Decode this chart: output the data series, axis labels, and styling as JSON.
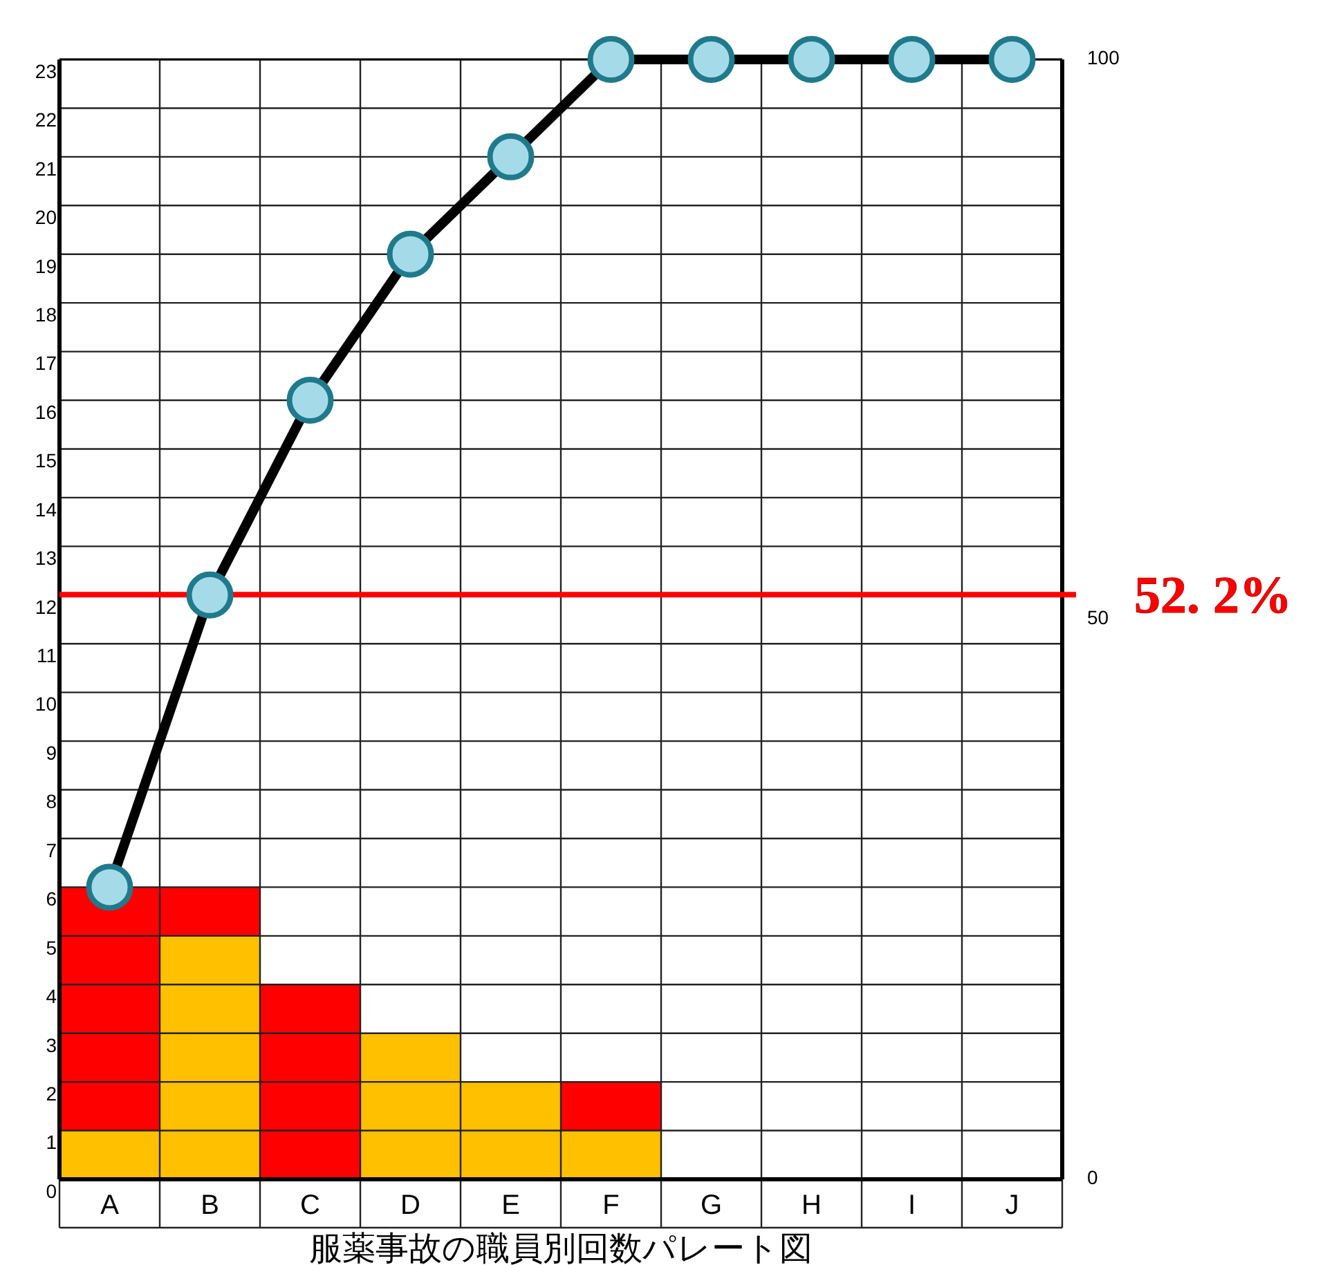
{
  "chart_data": {
    "type": "bar",
    "xlabel": "服薬事故の職員別回数パレート図",
    "categories": [
      "A",
      "B",
      "C",
      "D",
      "E",
      "F",
      "G",
      "H",
      "I",
      "J"
    ],
    "stacked": true,
    "series": [
      {
        "color": "#ffc000",
        "values": [
          1,
          5,
          0,
          3,
          2,
          1,
          0,
          0,
          0,
          0
        ]
      },
      {
        "color": "#ff0000",
        "values": [
          5,
          1,
          4,
          0,
          0,
          1,
          0,
          0,
          0,
          0
        ]
      },
      {
        "type": "line",
        "color": "#000000",
        "values": [
          6,
          12,
          16,
          19,
          21,
          23,
          23,
          23,
          23,
          23
        ]
      }
    ],
    "ylim": [
      0,
      23
    ],
    "yticks": [
      0,
      1,
      2,
      3,
      4,
      5,
      6,
      7,
      8,
      9,
      10,
      11,
      12,
      13,
      14,
      15,
      16,
      17,
      18,
      19,
      20,
      21,
      22,
      23
    ],
    "y2lim": [
      0,
      100
    ],
    "y2ticks": [
      0,
      50,
      100
    ],
    "ref_lines": [
      {
        "axis": "y2",
        "value": 52.2,
        "label": "52. 2%",
        "color": "#ff0000"
      }
    ],
    "grid": true,
    "marker": "circle"
  }
}
